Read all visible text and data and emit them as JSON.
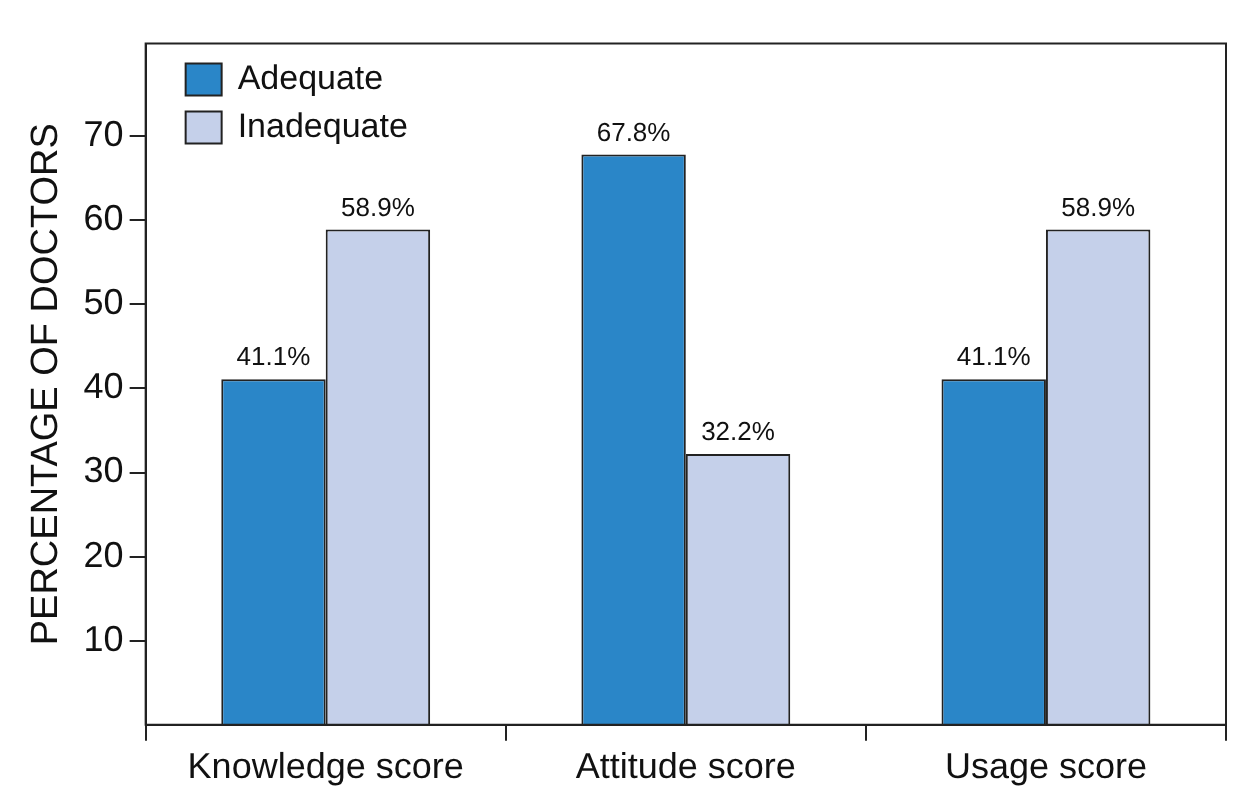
{
  "chart_data": {
    "type": "bar",
    "ylabel": "PERCENTAGE OF DOCTORS",
    "categories": [
      "Knowledge score",
      "Attitude score",
      "Usage score"
    ],
    "series": [
      {
        "name": "Adequate",
        "color": "#2a86c8",
        "values": [
          41.1,
          67.8,
          41.1
        ],
        "value_labels": [
          "41.1%",
          "67.8%",
          "41.1%"
        ]
      },
      {
        "name": "Inadequate",
        "color": "#c5d0ea",
        "values": [
          58.9,
          32.2,
          58.9
        ],
        "value_labels": [
          "58.9%",
          "32.2%",
          "58.9%"
        ]
      }
    ],
    "ylim": [
      0,
      81
    ],
    "yticks": [
      10,
      20,
      30,
      40,
      50,
      60,
      70
    ],
    "grid": false,
    "legend": "top left"
  }
}
